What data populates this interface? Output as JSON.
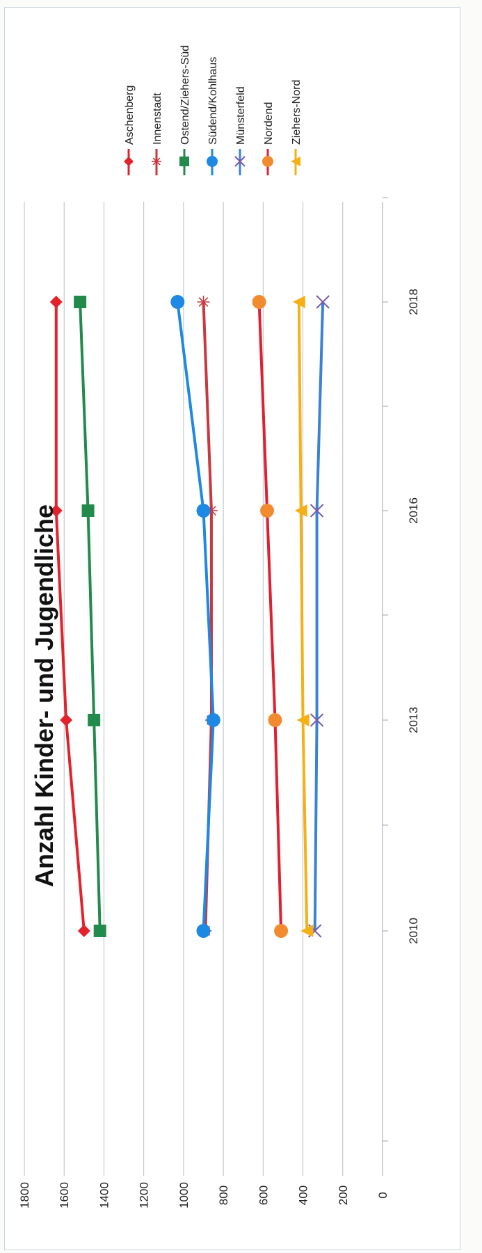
{
  "chart_data": {
    "type": "line",
    "title": "Anzahl Kinder- und Jugendliche",
    "categories": [
      "2010",
      "2013",
      "2016",
      "2018"
    ],
    "ylim": [
      0,
      1800
    ],
    "yticks": [
      0,
      200,
      400,
      600,
      800,
      1000,
      1200,
      1400,
      1600,
      1800
    ],
    "grid": true,
    "legend_position": "right",
    "series": [
      {
        "name": "Aschenberg",
        "values": [
          1500,
          1590,
          1640,
          1640
        ],
        "color": "#e3222c",
        "marker": "diamond"
      },
      {
        "name": "Innenstadt",
        "values": [
          890,
          860,
          860,
          900
        ],
        "color": "#c8383e",
        "marker": "asterisk"
      },
      {
        "name": "Ostend/Ziehers-Süd",
        "values": [
          1420,
          1450,
          1480,
          1520
        ],
        "color": "#228b4c",
        "marker": "square"
      },
      {
        "name": "Südend/Kohlhaus",
        "values": [
          900,
          850,
          900,
          1030
        ],
        "color": "#1e88e5",
        "marker": "circle"
      },
      {
        "name": "Münsterfeld",
        "values": [
          340,
          330,
          330,
          300
        ],
        "color": "#3a82d6",
        "marker": "x"
      },
      {
        "name": "Nordend",
        "values": [
          510,
          540,
          580,
          620
        ],
        "color": "#e02030",
        "marker": "circle",
        "marker_color": "#f28a30"
      },
      {
        "name": "Ziehers-Nord",
        "values": [
          380,
          400,
          410,
          420
        ],
        "color": "#f5b015",
        "marker": "triangle"
      }
    ]
  }
}
